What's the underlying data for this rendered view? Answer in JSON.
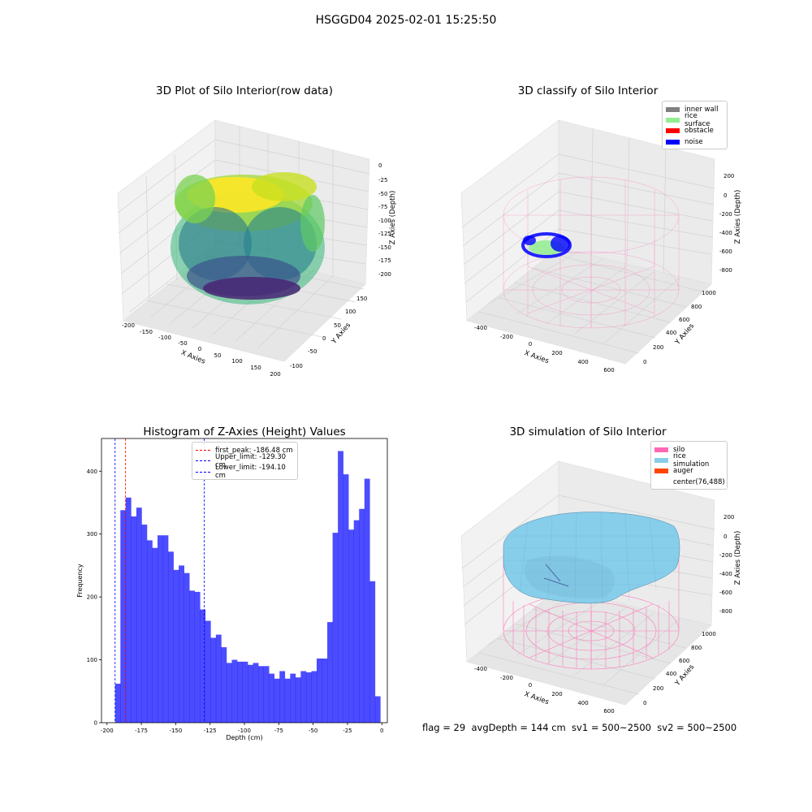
{
  "figure": {
    "title": "HSGGD04 2025-02-01 15:25:50"
  },
  "panels": {
    "raw": {
      "title": "3D Plot of Silo Interior(row data)",
      "xlabel": "X Axies",
      "ylabel": "Y Axies",
      "zlabel": "Z Axies (Depth)",
      "xticks": [
        "-200",
        "-150",
        "-100",
        "-50",
        "0",
        "50",
        "100",
        "150",
        "200"
      ],
      "yticks": [
        "-100",
        "-50",
        "0",
        "50",
        "100",
        "150"
      ],
      "zticks": [
        "0",
        "-25",
        "-50",
        "-75",
        "-100",
        "-125",
        "-150",
        "-175",
        "-200"
      ]
    },
    "classify": {
      "title": "3D classify of Silo Interior",
      "xlabel": "X Axies",
      "ylabel": "Y Axies",
      "zlabel": "Z Axies (Depth)",
      "xticks": [
        "-400",
        "-200",
        "0",
        "200",
        "400",
        "600"
      ],
      "yticks": [
        "0",
        "200",
        "400",
        "600",
        "800",
        "1000"
      ],
      "zticks": [
        "200",
        "0",
        "-200",
        "-400",
        "-600",
        "-800"
      ],
      "legend": [
        {
          "label": "inner wall",
          "color": "#808080"
        },
        {
          "label": "rice surface",
          "color": "#90ee90"
        },
        {
          "label": "obstacle",
          "color": "#ff0000"
        },
        {
          "label": "noise",
          "color": "#0000ff"
        }
      ]
    },
    "simulation": {
      "title": "3D simulation of Silo Interior",
      "xlabel": "X Axies",
      "ylabel": "Y Axies",
      "zlabel": "Z Axies (Depth)",
      "xticks": [
        "-400",
        "-200",
        "0",
        "200",
        "400",
        "600"
      ],
      "yticks": [
        "0",
        "200",
        "400",
        "600",
        "800",
        "1000"
      ],
      "zticks": [
        "200",
        "0",
        "-200",
        "-400",
        "-600",
        "-800"
      ],
      "legend": [
        {
          "label": "silo",
          "color": "#ff69b4"
        },
        {
          "label": "rice simulation",
          "color": "#87ceeb"
        },
        {
          "label": "auger",
          "color": "#ff4500"
        },
        {
          "label": "center(76,488)",
          "color": ""
        }
      ]
    }
  },
  "footer": {
    "text": "flag = 29  avgDepth = 144 cm  sv1 = 500~2500  sv2 = 500~2500"
  },
  "chart_data": {
    "type": "bar",
    "title": "Histogram of Z-Axies (Height) Values",
    "xlabel": "Depth (cm)",
    "ylabel": "Frequency",
    "xlim": [
      -204,
      4
    ],
    "ylim": [
      0,
      452
    ],
    "xticks": [
      -200,
      -175,
      -150,
      -125,
      -100,
      -75,
      -50,
      -25,
      0
    ],
    "yticks": [
      0,
      100,
      200,
      300,
      400
    ],
    "bin_start": -194.1,
    "bin_width": 3.86,
    "bar_color": "#0000ff",
    "values": [
      62,
      338,
      358,
      328,
      342,
      315,
      290,
      278,
      298,
      298,
      272,
      243,
      250,
      238,
      210,
      208,
      180,
      162,
      135,
      140,
      120,
      95,
      100,
      97,
      97,
      92,
      95,
      90,
      90,
      78,
      70,
      82,
      70,
      78,
      72,
      82,
      80,
      82,
      102,
      102,
      160,
      302,
      432,
      395,
      307,
      322,
      340,
      388,
      225,
      42
    ],
    "vlines": [
      {
        "label": "first_peak: -186.48 cm",
        "x": -186.48,
        "color": "#ff0000"
      },
      {
        "label": "Upper_limit: -129.30 cm",
        "x": -129.3,
        "color": "#0000ff"
      },
      {
        "label": "Lower_limit: -194.10 cm",
        "x": -194.1,
        "color": "#0000ff"
      }
    ]
  }
}
